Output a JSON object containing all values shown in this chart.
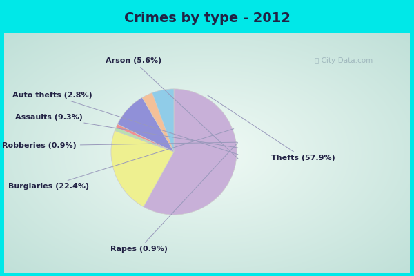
{
  "title": "Crimes by type - 2012",
  "labels": [
    "Thefts",
    "Burglaries",
    "Rapes",
    "Robberies",
    "Assaults",
    "Auto thefts",
    "Arson"
  ],
  "values": [
    57.9,
    22.4,
    0.9,
    0.9,
    9.3,
    2.8,
    5.6
  ],
  "colors": [
    "#c8b0d8",
    "#eef090",
    "#b8e0b0",
    "#f09090",
    "#9090d8",
    "#f4c098",
    "#90cce8"
  ],
  "title_fontsize": 14,
  "label_fontsize": 8,
  "title_color": "#222244",
  "label_color": "#222244",
  "bg_cyan": "#00e8e8",
  "bg_inner_center": "#eaf5ec",
  "bg_inner_edge": "#c8e8e0"
}
